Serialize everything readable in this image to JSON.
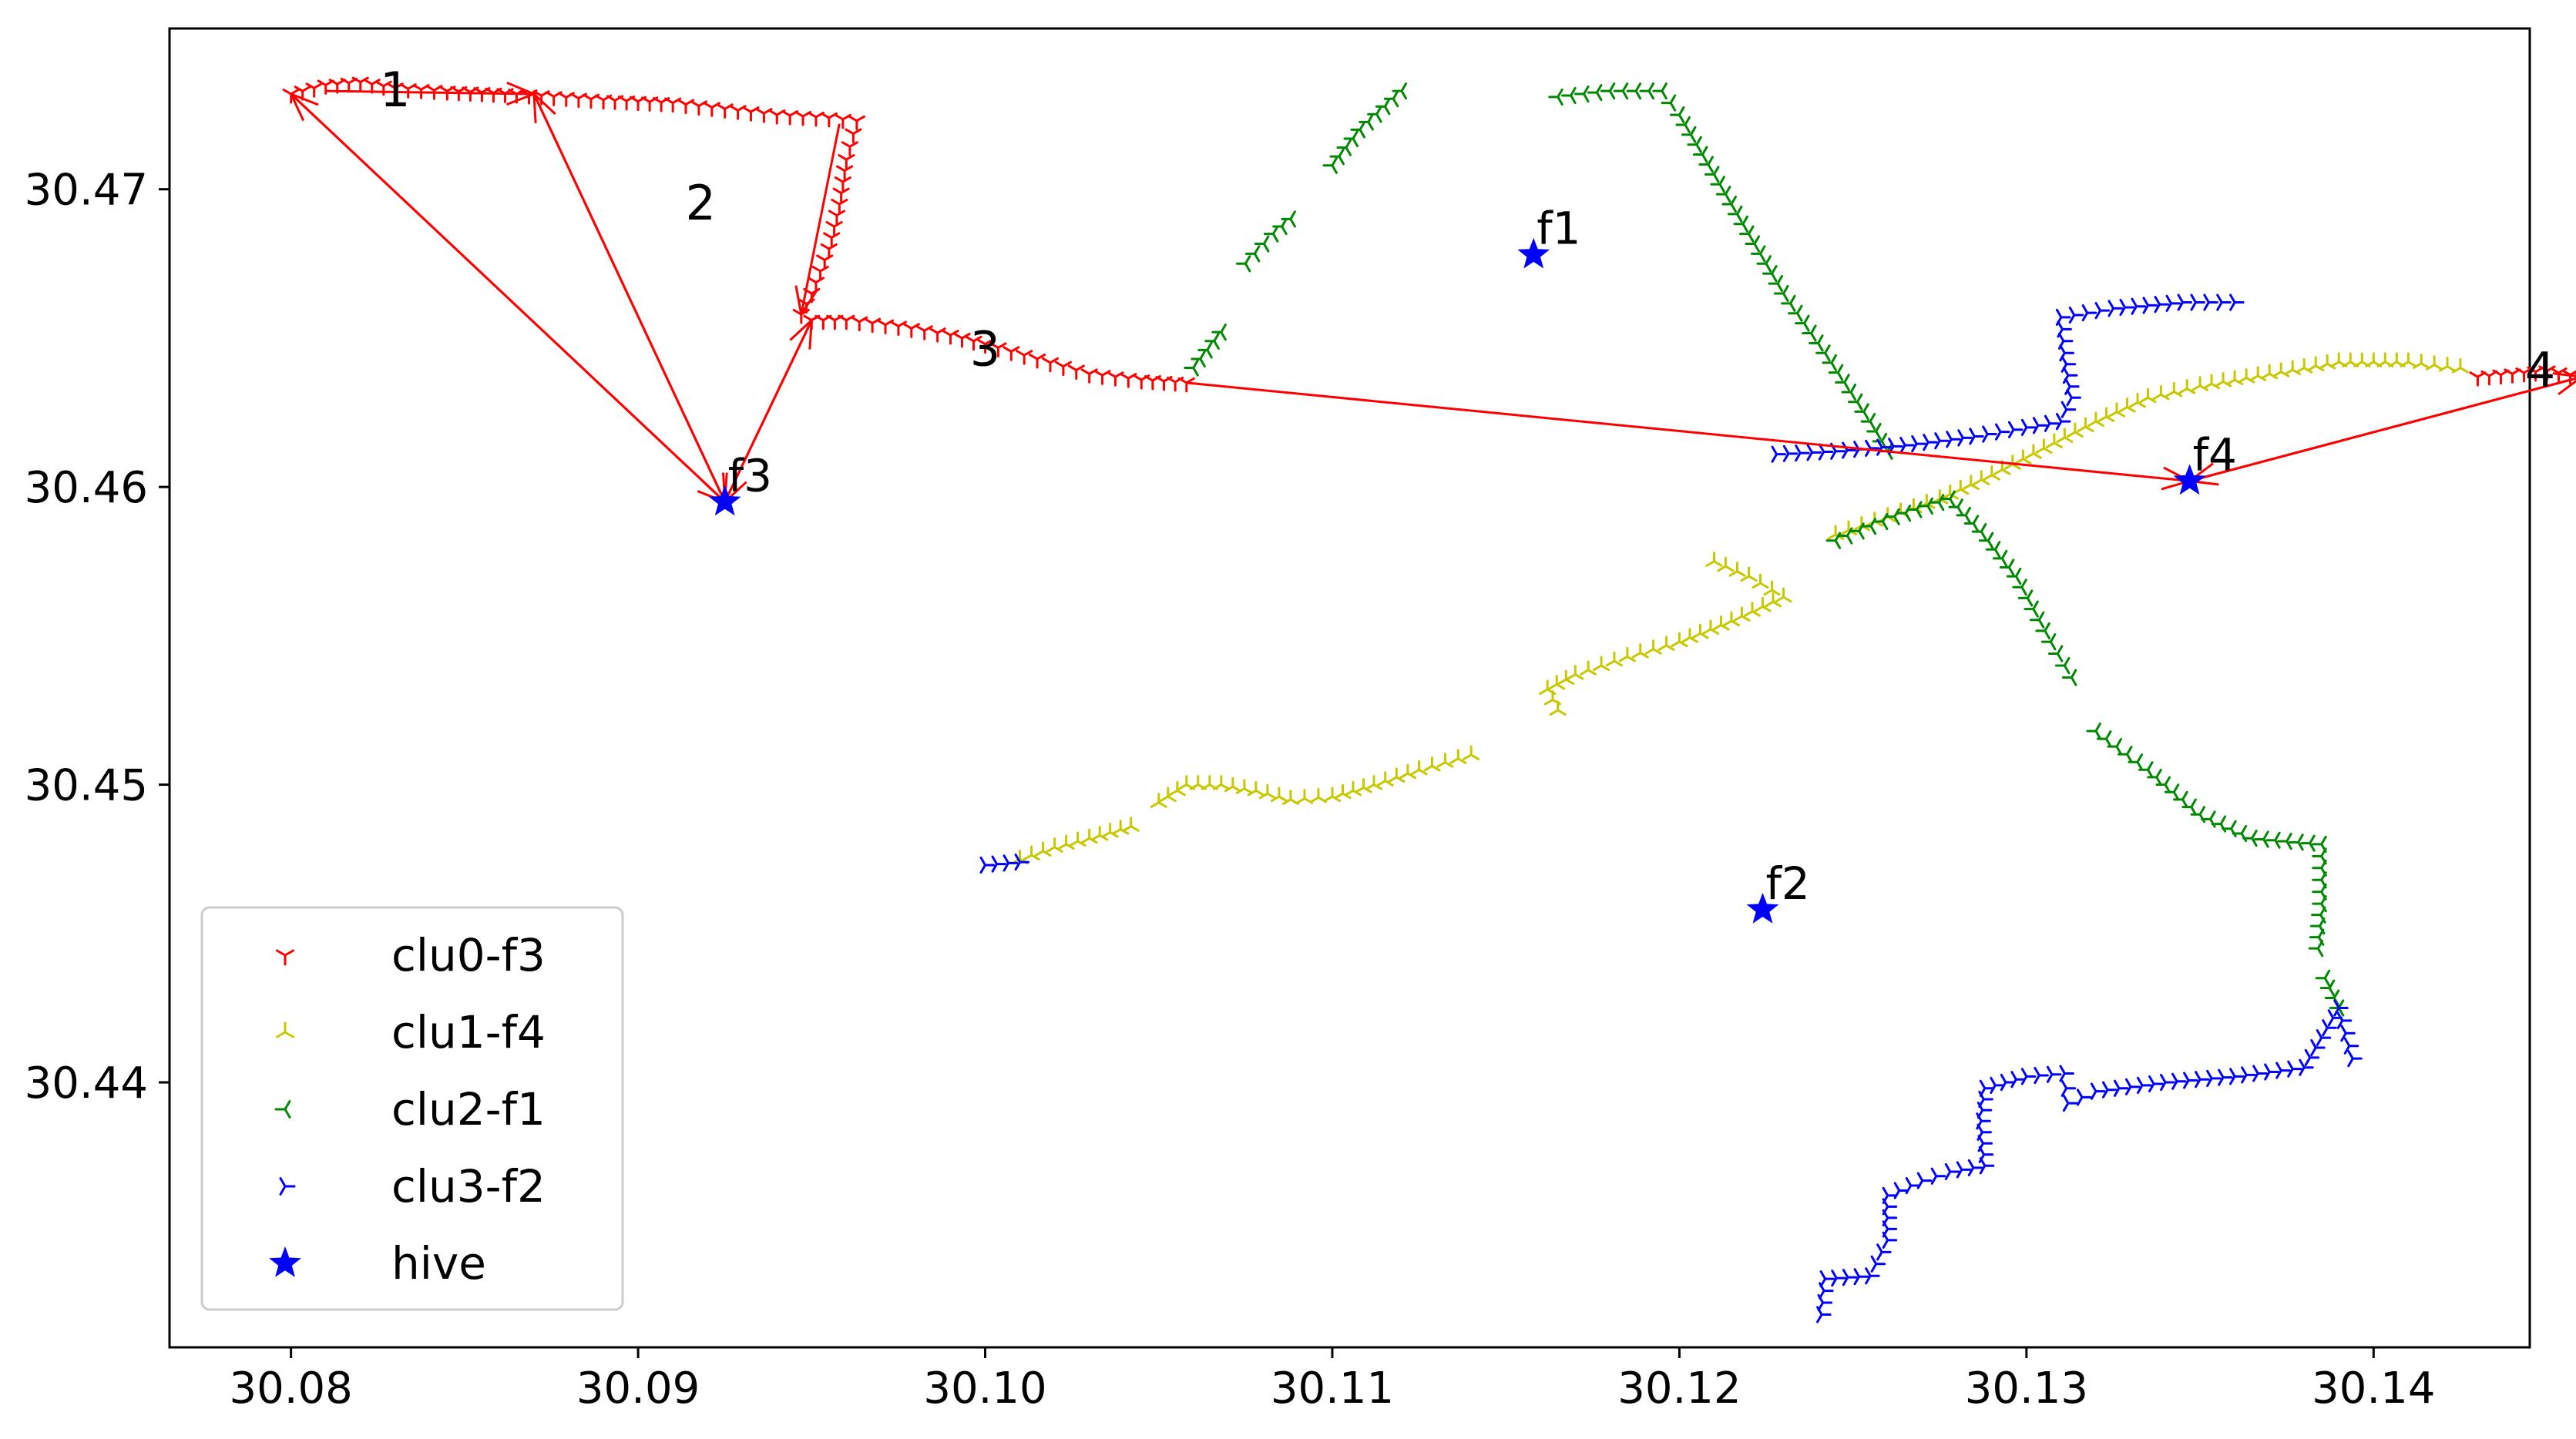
{
  "chart_data": {
    "type": "scatter",
    "title": "",
    "xlabel": "",
    "ylabel": "",
    "xlim": [
      30.0765,
      30.1445
    ],
    "ylim": [
      30.4311,
      30.4754
    ],
    "xticks": [
      30.08,
      30.09,
      30.1,
      30.11,
      30.12,
      30.13,
      30.14
    ],
    "yticks": [
      30.44,
      30.45,
      30.46,
      30.47
    ],
    "xtick_labels": [
      "30.08",
      "30.09",
      "30.10",
      "30.11",
      "30.12",
      "30.13",
      "30.14"
    ],
    "ytick_labels": [
      "30.44",
      "30.45",
      "30.46",
      "30.47"
    ],
    "grid": false,
    "legend_position": "lower-left",
    "series": [
      {
        "name": "clu0-f3",
        "color": "#ff0000",
        "marker": "tri-down",
        "paths": [
          [
            [
              30.08,
              30.4732
            ],
            [
              30.081,
              30.4735
            ],
            [
              30.082,
              30.4736
            ],
            [
              30.083,
              30.4734
            ],
            [
              30.0845,
              30.4733
            ],
            [
              30.0865,
              30.4732
            ],
            [
              30.089,
              30.473
            ],
            [
              30.091,
              30.4729
            ],
            [
              30.0925,
              30.4727
            ],
            [
              30.094,
              30.4725
            ],
            [
              30.0955,
              30.4724
            ],
            [
              30.0963,
              30.4723
            ],
            [
              30.096,
              30.471
            ],
            [
              30.0958,
              30.4695
            ],
            [
              30.0955,
              30.468
            ],
            [
              30.095,
              30.4665
            ],
            [
              30.0947,
              30.4658
            ]
          ],
          [
            [
              30.095,
              30.4656
            ],
            [
              30.096,
              30.4656
            ],
            [
              30.0975,
              30.4654
            ],
            [
              30.099,
              30.4651
            ],
            [
              30.1,
              30.4648
            ],
            [
              30.1015,
              30.4643
            ],
            [
              30.103,
              30.4638
            ],
            [
              30.1045,
              30.4636
            ],
            [
              30.1058,
              30.4635
            ]
          ],
          [
            [
              30.143,
              30.4637
            ],
            [
              30.144,
              30.4638
            ],
            [
              30.145,
              30.4639
            ],
            [
              30.146,
              30.4637
            ]
          ]
        ]
      },
      {
        "name": "clu1-f4",
        "color": "#c8c800",
        "marker": "tri-up",
        "paths": [
          [
            [
              30.101,
              30.4475
            ],
            [
              30.102,
              30.4479
            ],
            [
              30.103,
              30.4482
            ],
            [
              30.1042,
              30.4486
            ]
          ],
          [
            [
              30.105,
              30.4494
            ],
            [
              30.1058,
              30.45
            ],
            [
              30.1068,
              30.45
            ],
            [
              30.1078,
              30.4498
            ],
            [
              30.1088,
              30.4495
            ],
            [
              30.11,
              30.4496
            ],
            [
              30.1112,
              30.45
            ],
            [
              30.1125,
              30.4505
            ],
            [
              30.114,
              30.451
            ]
          ],
          [
            [
              30.1165,
              30.4525
            ],
            [
              30.1162,
              30.4532
            ],
            [
              30.117,
              30.4537
            ],
            [
              30.1185,
              30.4543
            ],
            [
              30.12,
              30.4548
            ],
            [
              30.1215,
              30.4555
            ],
            [
              30.123,
              30.4563
            ],
            [
              30.122,
              30.457
            ],
            [
              30.121,
              30.4575
            ]
          ],
          [
            [
              30.1245,
              30.4584
            ],
            [
              30.126,
              30.459
            ],
            [
              30.1275,
              30.4596
            ],
            [
              30.129,
              30.4604
            ],
            [
              30.1305,
              30.4613
            ],
            [
              30.132,
              30.4622
            ],
            [
              30.1335,
              30.463
            ],
            [
              30.135,
              30.4634
            ],
            [
              30.137,
              30.4638
            ],
            [
              30.139,
              30.4642
            ],
            [
              30.141,
              30.4642
            ],
            [
              30.1425,
              30.464
            ]
          ]
        ]
      },
      {
        "name": "clu2-f1",
        "color": "#008800",
        "marker": "tri-left",
        "paths": [
          [
            [
              30.106,
              30.464
            ],
            [
              30.1068,
              30.4652
            ]
          ],
          [
            [
              30.1075,
              30.4675
            ],
            [
              30.1083,
              30.4685
            ],
            [
              30.1088,
              30.469
            ]
          ],
          [
            [
              30.11,
              30.4708
            ],
            [
              30.1108,
              30.472
            ],
            [
              30.112,
              30.4733
            ]
          ],
          [
            [
              30.1165,
              30.4731
            ],
            [
              30.118,
              30.4733
            ],
            [
              30.1195,
              30.4733
            ],
            [
              30.12,
              30.4725
            ],
            [
              30.121,
              30.4705
            ],
            [
              30.122,
              30.4685
            ],
            [
              30.123,
              30.4665
            ],
            [
              30.1242,
              30.4645
            ],
            [
              30.1255,
              30.4622
            ],
            [
              30.126,
              30.4612
            ]
          ],
          [
            [
              30.1245,
              30.4582
            ],
            [
              30.1262,
              30.459
            ],
            [
              30.1278,
              30.4596
            ],
            [
              30.1287,
              30.4585
            ],
            [
              30.1297,
              30.457
            ],
            [
              30.1307,
              30.4548
            ],
            [
              30.1313,
              30.4536
            ]
          ],
          [
            [
              30.132,
              30.4518
            ],
            [
              30.1335,
              30.4505
            ],
            [
              30.135,
              30.449
            ],
            [
              30.1365,
              30.4482
            ],
            [
              30.1385,
              30.448
            ],
            [
              30.1385,
              30.446
            ],
            [
              30.1384,
              30.4445
            ]
          ],
          [
            [
              30.1386,
              30.4435
            ],
            [
              30.139,
              30.4425
            ]
          ]
        ]
      },
      {
        "name": "clu3-f2",
        "color": "#0000ff",
        "marker": "tri-right",
        "paths": [
          [
            [
              30.1,
              30.4473
            ],
            [
              30.101,
              30.4474
            ]
          ],
          [
            [
              30.1228,
              30.4611
            ],
            [
              30.1245,
              30.4612
            ],
            [
              30.1265,
              30.4614
            ],
            [
              30.1285,
              30.4617
            ],
            [
              30.13,
              30.462
            ],
            [
              30.131,
              30.4622
            ],
            [
              30.1313,
              30.463
            ],
            [
              30.1311,
              30.4645
            ],
            [
              30.131,
              30.4657
            ],
            [
              30.1325,
              30.466
            ],
            [
              30.1345,
              30.4662
            ],
            [
              30.136,
              30.4662
            ]
          ],
          [
            [
              30.1394,
              30.4408
            ],
            [
              30.139,
              30.4425
            ],
            [
              30.138,
              30.4405
            ],
            [
              30.136,
              30.4402
            ],
            [
              30.134,
              30.44
            ],
            [
              30.132,
              30.4397
            ],
            [
              30.1312,
              30.4393
            ],
            [
              30.1311,
              30.4403
            ],
            [
              30.13,
              30.4402
            ],
            [
              30.1288,
              30.4398
            ],
            [
              30.1287,
              30.4387
            ],
            [
              30.1288,
              30.4372
            ],
            [
              30.1278,
              30.437
            ],
            [
              30.127,
              30.4367
            ],
            [
              30.126,
              30.4362
            ],
            [
              30.126,
              30.4347
            ],
            [
              30.1255,
              30.4335
            ],
            [
              30.1242,
              30.4334
            ],
            [
              30.1241,
              30.4322
            ]
          ]
        ]
      }
    ],
    "hives": {
      "name": "hive",
      "color": "#0000ff",
      "marker": "star",
      "points": [
        {
          "label": "f1",
          "x": 30.1158,
          "y": 30.4678
        },
        {
          "label": "f2",
          "x": 30.1224,
          "y": 30.4458
        },
        {
          "label": "f3",
          "x": 30.0925,
          "y": 30.4595
        },
        {
          "label": "f4",
          "x": 30.1347,
          "y": 30.4602
        }
      ]
    },
    "route": {
      "color": "#ff0000",
      "segments": [
        [
          [
            30.0958,
            30.4722
          ],
          [
            30.0947,
            30.4658
          ]
        ],
        [
          [
            30.0925,
            30.4595
          ],
          [
            30.08,
            30.4732
          ]
        ],
        [
          [
            30.08,
            30.4732
          ],
          [
            30.0925,
            30.4595
          ]
        ],
        [
          [
            30.0925,
            30.4595
          ],
          [
            30.087,
            30.4732
          ]
        ],
        [
          [
            30.087,
            30.4732
          ],
          [
            30.0925,
            30.4595
          ]
        ],
        [
          [
            30.0925,
            30.4595
          ],
          [
            30.095,
            30.4656
          ]
        ],
        [
          [
            30.095,
            30.4656
          ],
          [
            30.0925,
            30.4595
          ]
        ],
        [
          [
            30.1058,
            30.4635
          ],
          [
            30.1347,
            30.4602
          ]
        ],
        [
          [
            30.1347,
            30.4602
          ],
          [
            30.146,
            30.4637
          ]
        ],
        [
          [
            30.146,
            30.4637
          ],
          [
            30.1347,
            30.4602
          ]
        ],
        [
          [
            30.081,
            30.4733
          ],
          [
            30.087,
            30.4732
          ]
        ]
      ]
    },
    "annotations": [
      {
        "text": "1",
        "x": 30.083,
        "y": 30.4733
      },
      {
        "text": "2",
        "x": 30.0918,
        "y": 30.4695
      },
      {
        "text": "3",
        "x": 30.1,
        "y": 30.4646
      },
      {
        "text": "4",
        "x": 30.1448,
        "y": 30.4639
      }
    ]
  }
}
